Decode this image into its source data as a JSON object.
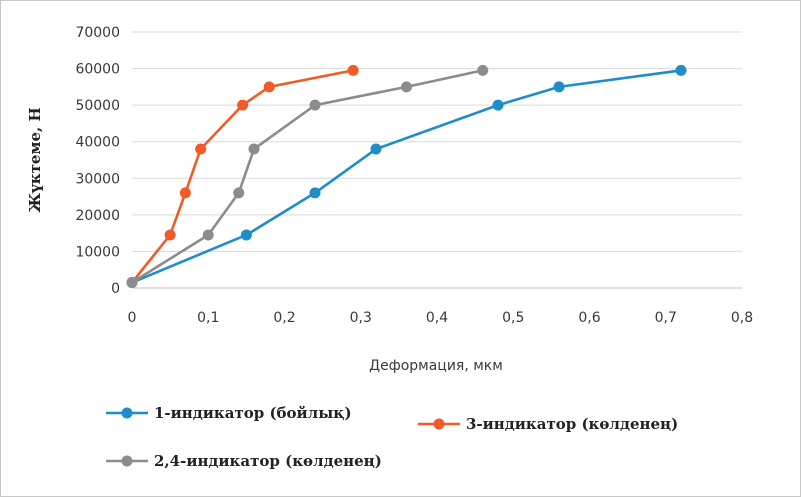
{
  "chart_data": {
    "type": "line",
    "title": "",
    "xlabel": "Деформация, мкм",
    "ylabel": "Жүктеме, Н",
    "xlim": [
      0,
      0.8
    ],
    "ylim": [
      0,
      70000
    ],
    "x_ticks": [
      "0",
      "0,1",
      "0,2",
      "0,3",
      "0,4",
      "0,5",
      "0,6",
      "0,7",
      "0,8"
    ],
    "y_ticks": [
      "0",
      "10000",
      "20000",
      "30000",
      "40000",
      "50000",
      "60000",
      "70000"
    ],
    "grid": "horizontal",
    "legend_position": "bottom",
    "series": [
      {
        "name": "1-индикатор (бойлық)",
        "color": "#1f8dc7",
        "points": [
          [
            0,
            1500
          ],
          [
            0.15,
            14500
          ],
          [
            0.24,
            26000
          ],
          [
            0.32,
            38000
          ],
          [
            0.48,
            50000
          ],
          [
            0.56,
            55000
          ],
          [
            0.72,
            59500
          ]
        ]
      },
      {
        "name": "3-индикатор (көлденең)",
        "color": "#f05b28",
        "points": [
          [
            0,
            1500
          ],
          [
            0.05,
            14500
          ],
          [
            0.07,
            26000
          ],
          [
            0.09,
            38000
          ],
          [
            0.145,
            50000
          ],
          [
            0.18,
            55000
          ],
          [
            0.29,
            59500
          ]
        ]
      },
      {
        "name": "2,4-индикатор (көлденең)",
        "color": "#8c8c8c",
        "points": [
          [
            0,
            1500
          ],
          [
            0.1,
            14500
          ],
          [
            0.14,
            26000
          ],
          [
            0.16,
            38000
          ],
          [
            0.24,
            50000
          ],
          [
            0.36,
            55000
          ],
          [
            0.46,
            59500
          ]
        ]
      }
    ]
  }
}
